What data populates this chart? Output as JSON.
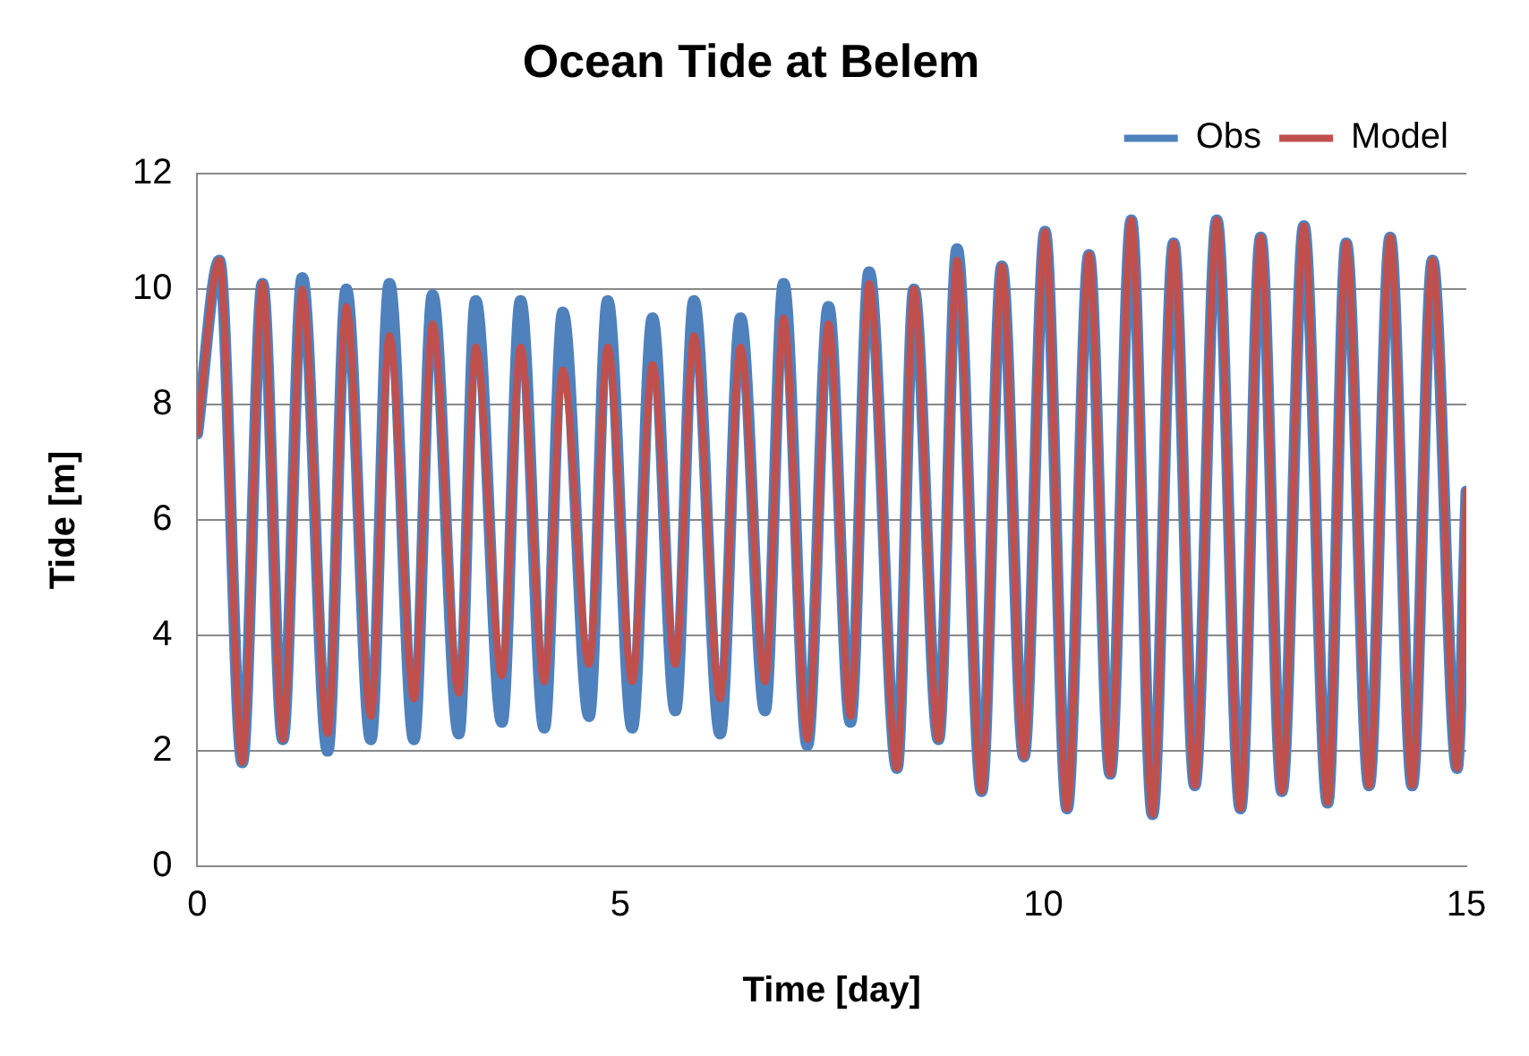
{
  "chart_data": {
    "type": "line",
    "title": "Ocean Tide at Belem",
    "xlabel": "Time [day]",
    "ylabel": "Tide [m]",
    "x": [
      0,
      0.26,
      0.53,
      0.77,
      1.01,
      1.24,
      1.54,
      1.76,
      2.05,
      2.27,
      2.56,
      2.78,
      3.09,
      3.29,
      3.6,
      3.82,
      4.1,
      4.32,
      4.63,
      4.85,
      5.14,
      5.38,
      5.65,
      5.87,
      6.18,
      6.42,
      6.71,
      6.93,
      7.21,
      7.46,
      7.72,
      7.94,
      8.27,
      8.47,
      8.76,
      8.98,
      9.27,
      9.51,
      9.77,
      10.02,
      10.28,
      10.54,
      10.79,
      11.04,
      11.29,
      11.54,
      11.79,
      12.05,
      12.33,
      12.57,
      12.82,
      13.08,
      13.36,
      13.58,
      13.85,
      14.1,
      14.36,
      14.6,
      14.89,
      15
    ],
    "series": [
      {
        "name": "Obs",
        "color": "#4f81bd",
        "values": [
          7.5,
          10.5,
          1.8,
          10.1,
          2.2,
          10.2,
          2.0,
          10.0,
          2.2,
          10.1,
          2.2,
          9.9,
          2.3,
          9.8,
          2.5,
          9.8,
          2.4,
          9.6,
          2.6,
          9.8,
          2.4,
          9.5,
          2.7,
          9.8,
          2.3,
          9.5,
          2.7,
          10.1,
          2.1,
          9.7,
          2.5,
          10.3,
          1.7,
          10.0,
          2.2,
          10.7,
          1.3,
          10.4,
          1.9,
          11.0,
          1.0,
          10.6,
          1.6,
          11.2,
          0.9,
          10.8,
          1.4,
          11.2,
          1.0,
          10.9,
          1.3,
          11.1,
          1.1,
          10.8,
          1.4,
          10.9,
          1.4,
          10.5,
          1.7,
          6.5
        ]
      },
      {
        "name": "Model",
        "color": "#c0504d",
        "values": [
          7.5,
          10.5,
          1.8,
          10.1,
          2.2,
          10.0,
          2.3,
          9.7,
          2.6,
          9.2,
          2.9,
          9.4,
          3.0,
          9.0,
          3.3,
          9.0,
          3.2,
          8.6,
          3.5,
          9.0,
          3.2,
          8.7,
          3.5,
          9.2,
          2.9,
          9.0,
          3.2,
          9.5,
          2.2,
          9.4,
          2.6,
          10.1,
          1.7,
          10.0,
          2.2,
          10.5,
          1.3,
          10.4,
          1.9,
          11.0,
          1.0,
          10.6,
          1.6,
          11.2,
          0.9,
          10.8,
          1.4,
          11.2,
          1.0,
          10.9,
          1.3,
          11.1,
          1.1,
          10.8,
          1.4,
          10.9,
          1.4,
          10.5,
          1.7,
          6.5
        ]
      }
    ],
    "xlim": [
      0,
      15
    ],
    "xticks": [
      0,
      5,
      10,
      15
    ],
    "ylim": [
      0,
      12
    ],
    "yticks": [
      0,
      2,
      4,
      6,
      8,
      10,
      12
    ],
    "grid": "y",
    "legend": "top right",
    "marker": "none",
    "line_style": "solid"
  }
}
